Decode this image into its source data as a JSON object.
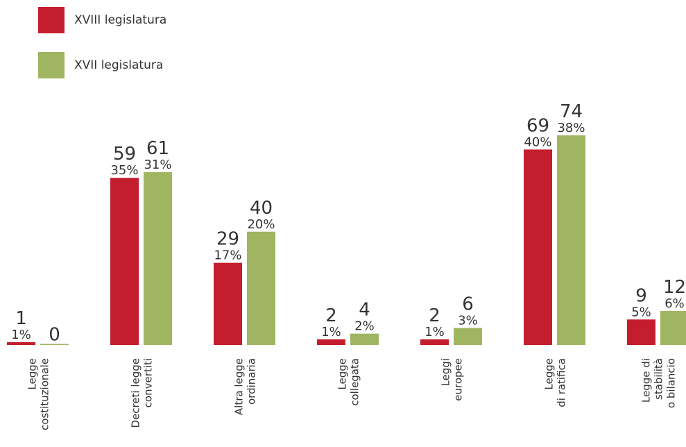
{
  "chart_data": {
    "type": "bar",
    "categories": [
      [
        "Legge",
        "costituzionale"
      ],
      [
        "Decreti legge",
        "convertiti"
      ],
      [
        "Altra legge",
        "ordinaria"
      ],
      [
        "Legge",
        "collegata"
      ],
      [
        "Leggi",
        "europee"
      ],
      [
        "Legge",
        "di ratifica"
      ],
      [
        "Legge di",
        "stabilità",
        "o bilancio"
      ]
    ],
    "series": [
      {
        "name": "XVIII legislatura",
        "color": "#c41e2e",
        "values": [
          1,
          59,
          29,
          2,
          2,
          69,
          9
        ],
        "percent_labels": [
          "1%",
          "35%",
          "17%",
          "1%",
          "1%",
          "40%",
          "5%"
        ]
      },
      {
        "name": "XVII legislatura",
        "color": "#9fb562",
        "values": [
          0,
          61,
          40,
          4,
          6,
          74,
          12
        ],
        "percent_labels": [
          "",
          "31%",
          "20%",
          "2%",
          "3%",
          "38%",
          "6%"
        ]
      }
    ],
    "legend_position": "top-left",
    "grid": false
  }
}
